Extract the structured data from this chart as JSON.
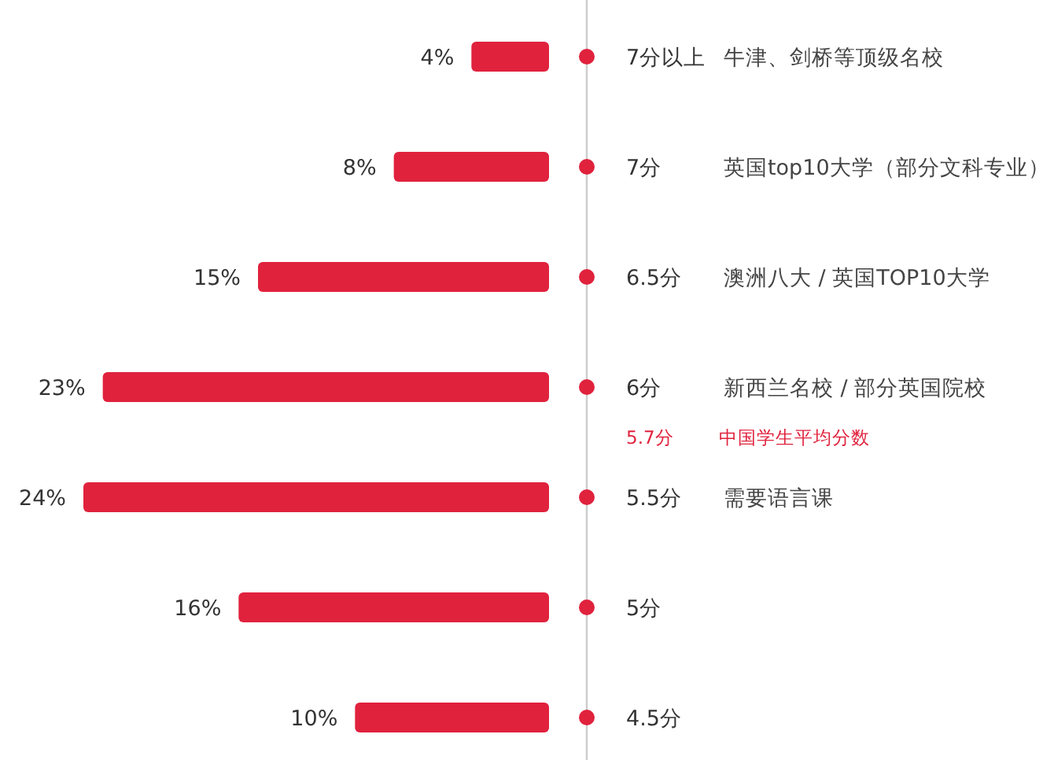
{
  "chart_data": {
    "type": "bar",
    "orientation": "horizontal",
    "categories": [
      "7分以上",
      "7分",
      "6.5分",
      "6分",
      "5.5分",
      "5分",
      "4.5分"
    ],
    "values": [
      4,
      8,
      15,
      23,
      24,
      16,
      10
    ],
    "value_labels": [
      "4%",
      "8%",
      "15%",
      "23%",
      "24%",
      "16%",
      "10%"
    ],
    "color": "#e0223d",
    "annotations": [
      "牛津、剑桥等顶级名校",
      "英国top10大学（部分文科专业）",
      "澳洲八大 / 英国TOP10大学",
      "新西兰名校 / 部分英国院校",
      "需要语言课",
      "5.7分",
      "中国学生平均分数"
    ]
  }
}
